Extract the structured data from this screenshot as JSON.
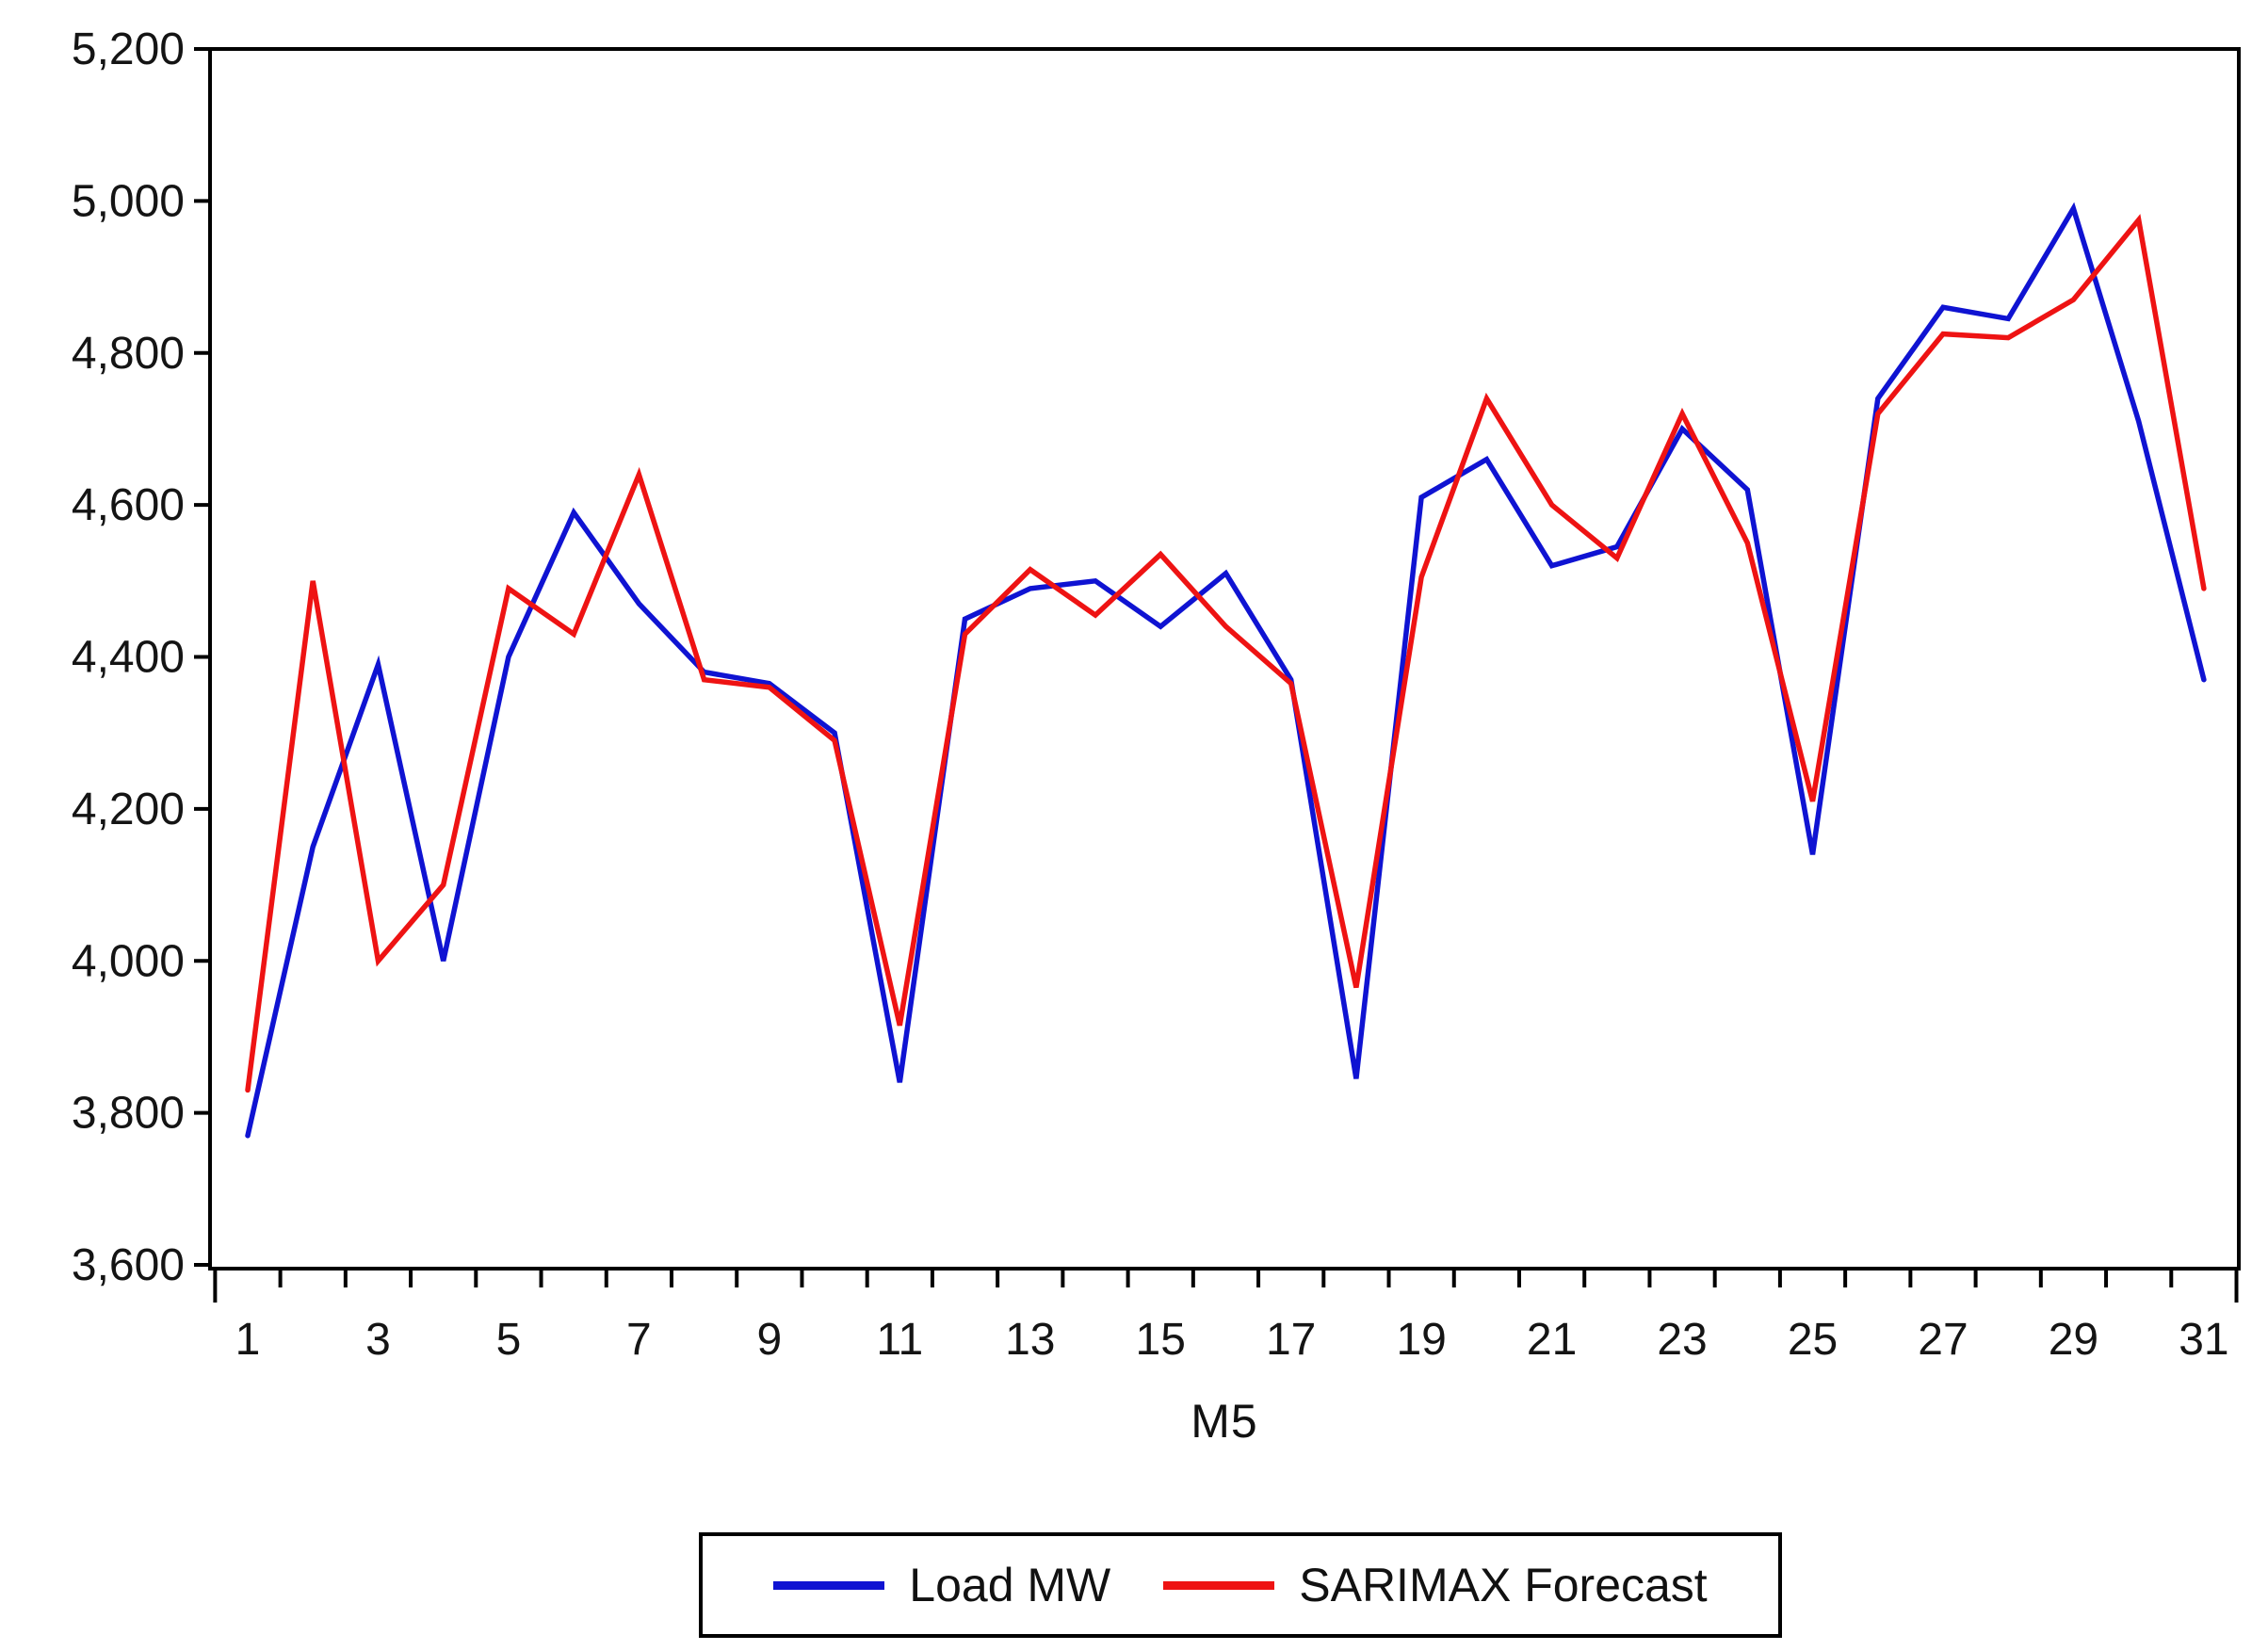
{
  "chart_data": {
    "type": "line",
    "title": "",
    "xlabel": "M5",
    "ylabel": "",
    "ylim": [
      3600,
      5200
    ],
    "y_tick_step": 200,
    "y_tick_labels": [
      "5,200",
      "5,000",
      "4,800",
      "4,600",
      "4,400",
      "4,200",
      "4,000",
      "3,800",
      "3,600"
    ],
    "x": [
      1,
      2,
      3,
      4,
      5,
      6,
      7,
      8,
      9,
      10,
      11,
      12,
      13,
      14,
      15,
      16,
      17,
      18,
      19,
      20,
      21,
      22,
      23,
      24,
      25,
      26,
      27,
      28,
      29,
      30,
      31
    ],
    "x_tick_labels": [
      "1",
      "3",
      "5",
      "7",
      "9",
      "11",
      "13",
      "15",
      "17",
      "19",
      "21",
      "23",
      "25",
      "27",
      "29",
      "31"
    ],
    "grid": false,
    "legend_position": "bottom-center",
    "series": [
      {
        "name": "Load MW",
        "color": "#0f13d2",
        "values": [
          3770,
          4150,
          4390,
          4000,
          4400,
          4590,
          4470,
          4380,
          4365,
          4300,
          3840,
          4450,
          4490,
          4500,
          4440,
          4510,
          4370,
          3845,
          4610,
          4660,
          4520,
          4545,
          4700,
          4620,
          4140,
          4740,
          4860,
          4845,
          4990,
          4710,
          4370
        ]
      },
      {
        "name": "SARIMAX Forecast",
        "color": "#ee1313",
        "values": [
          3830,
          4500,
          4000,
          4100,
          4490,
          4430,
          4640,
          4370,
          4360,
          4290,
          3915,
          4430,
          4515,
          4455,
          4535,
          4440,
          4365,
          3965,
          4505,
          4740,
          4600,
          4530,
          4720,
          4550,
          4210,
          4720,
          4825,
          4820,
          4870,
          4975,
          4490
        ]
      }
    ]
  },
  "axis_titles": {
    "x": "M5"
  },
  "legend": {
    "items": [
      {
        "label": "Load MW",
        "color": "#0f13d2"
      },
      {
        "label": "SARIMAX Forecast",
        "color": "#ee1313"
      }
    ]
  },
  "colors": {
    "frame": "#000000",
    "tick_text": "#141414",
    "background": "#ffffff"
  }
}
